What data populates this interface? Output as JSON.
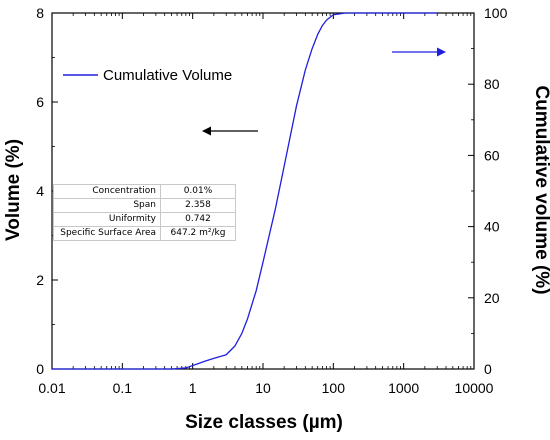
{
  "chart_data": {
    "type": "line",
    "xlabel": "Size classes (µm)",
    "ylabel_left": "Volume  (%)",
    "ylabel_right": "Cumulative volume  (%)",
    "x_scale": "log",
    "xlim": [
      0.01,
      10000
    ],
    "ylim_left": [
      0,
      8
    ],
    "ylim_right": [
      0,
      100
    ],
    "x_ticks": [
      "0.01",
      "0.1",
      "1",
      "10",
      "100",
      "1000",
      "10000"
    ],
    "y_left_ticks": [
      "0",
      "2",
      "4",
      "6",
      "8"
    ],
    "y_right_ticks": [
      "0",
      "20",
      "40",
      "60",
      "80",
      "100"
    ],
    "grid": false,
    "legend": {
      "entries": [
        "Cumulative Volume"
      ],
      "placement": "top-left"
    },
    "series": [
      {
        "name": "Cumulative Volume",
        "axis": "right",
        "color": "#1f1fe0",
        "x": [
          0.01,
          0.1,
          0.5,
          0.8,
          1.2,
          1.5,
          2,
          3,
          4,
          5,
          6,
          8,
          10,
          15,
          20,
          30,
          40,
          50,
          60,
          70,
          80,
          100,
          150,
          300,
          1000,
          3000
        ],
        "y": [
          0,
          0,
          0,
          0.3,
          1.5,
          2.2,
          3,
          4,
          6.5,
          10,
          14,
          22,
          30,
          45,
          57,
          74,
          84,
          90,
          94,
          96.5,
          98,
          99.5,
          100,
          100,
          100,
          100
        ]
      }
    ],
    "arrows": [
      {
        "direction": "left",
        "color": "#000000",
        "meaning": "left axis"
      },
      {
        "direction": "right",
        "color": "#1f1fe0",
        "meaning": "right axis"
      }
    ]
  },
  "info_table": [
    {
      "label": "Concentration",
      "value": "0.01%"
    },
    {
      "label": "Span",
      "value": "2.358"
    },
    {
      "label": "Uniformity",
      "value": "0.742"
    },
    {
      "label": "Specific Surface Area",
      "value": "647.2 m²/kg"
    }
  ]
}
